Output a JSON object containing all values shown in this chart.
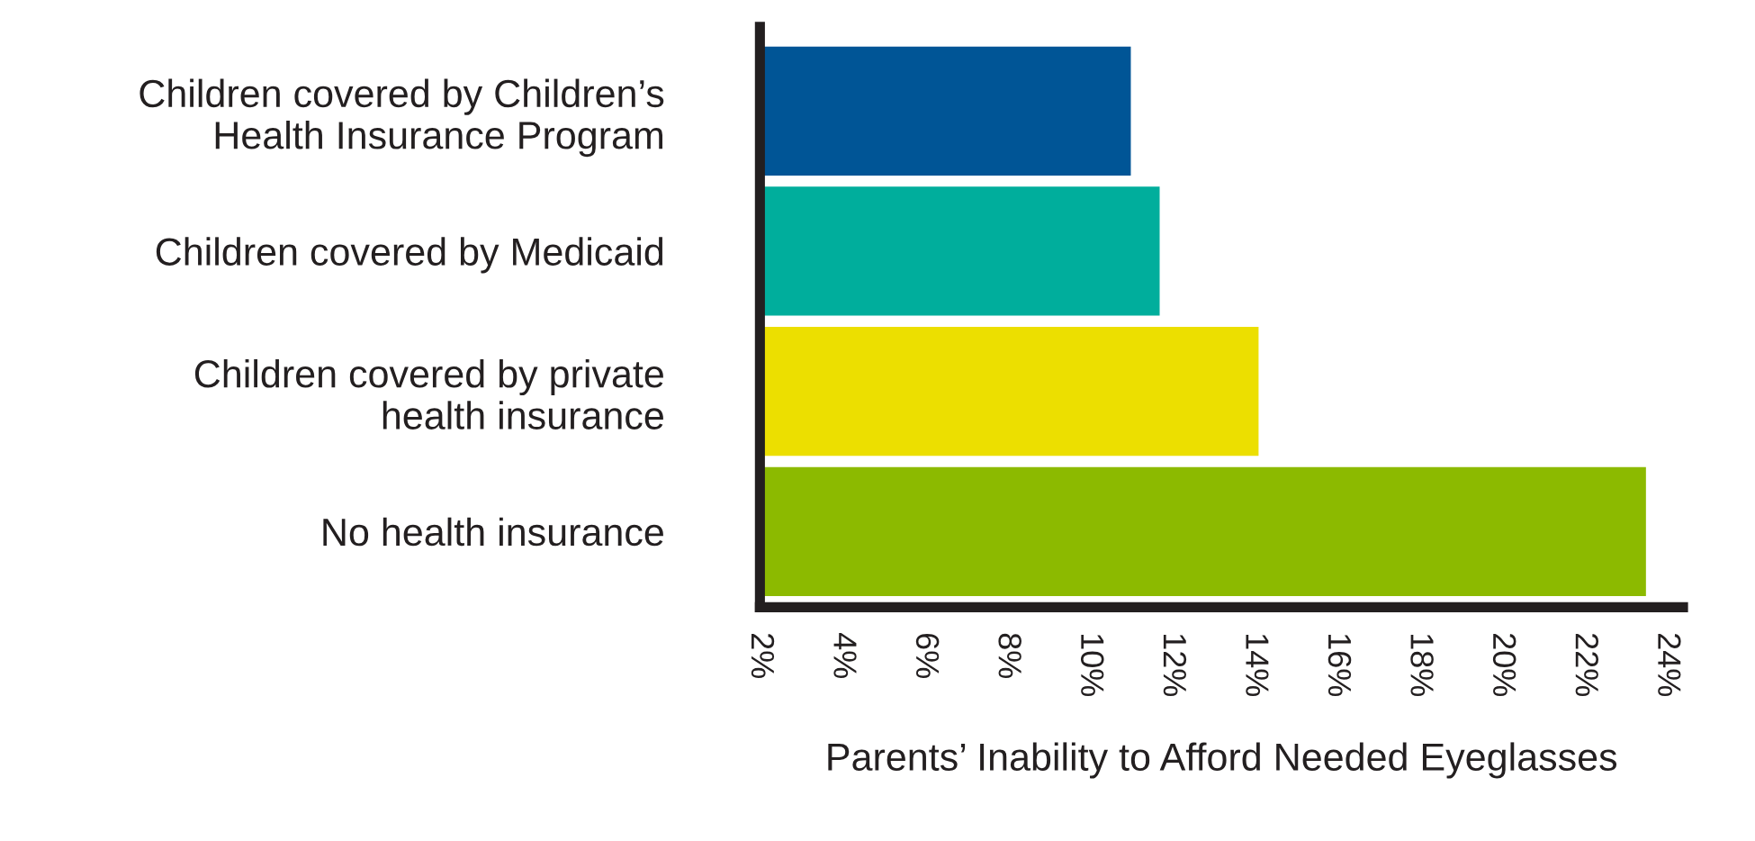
{
  "chart_data": {
    "type": "bar",
    "orientation": "horizontal",
    "categories": [
      "Children covered by Children’s\nHealth Insurance Program",
      "Children covered by Medicaid",
      "Children covered by private\nhealth insurance",
      "No health insurance"
    ],
    "values": [
      11.0,
      11.7,
      14.1,
      23.5
    ],
    "colors": [
      "#005596",
      "#00ae9c",
      "#ecdf00",
      "#8cba00"
    ],
    "xlabel": "Parents’ Inability to Afford Needed Eyeglasses",
    "xlim": [
      2,
      24.4
    ],
    "xticks": [
      {
        "value": 2,
        "label": "2%"
      },
      {
        "value": 4,
        "label": "4%"
      },
      {
        "value": 6,
        "label": "6%"
      },
      {
        "value": 8,
        "label": "8%"
      },
      {
        "value": 10,
        "label": "10%"
      },
      {
        "value": 12,
        "label": "12%"
      },
      {
        "value": 14,
        "label": "14%"
      },
      {
        "value": 16,
        "label": "16%"
      },
      {
        "value": 18,
        "label": "18%"
      },
      {
        "value": 20,
        "label": "20%"
      },
      {
        "value": 22,
        "label": "22%"
      },
      {
        "value": 24,
        "label": "24%"
      }
    ],
    "grid": false,
    "legend": false
  }
}
